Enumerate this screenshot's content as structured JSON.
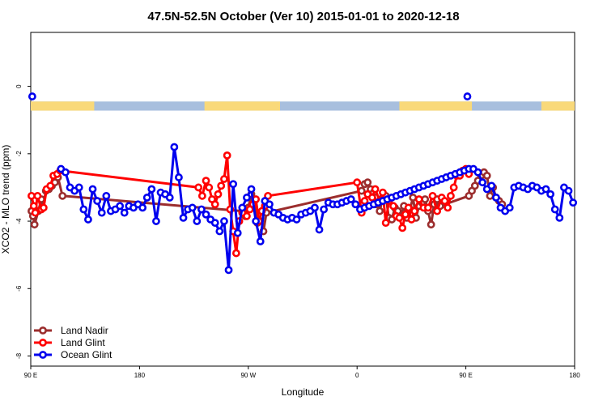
{
  "chart_data": {
    "type": "line",
    "title": "47.5N-52.5N October (Ver 10)   2015-01-01 to 2020-12-18",
    "xlabel": "Longitude",
    "ylabel": "XCO2 - MLO trend (ppm)",
    "xlim": [
      90,
      450
    ],
    "ylim": [
      -8.3,
      1.6
    ],
    "grid": false,
    "legend_position": "bottom-left",
    "x_ticks": [
      {
        "value": 90,
        "label": "90 E"
      },
      {
        "value": 162,
        "label": "180"
      },
      {
        "value": 234,
        "label": "90 W"
      },
      {
        "value": 306,
        "label": "0"
      },
      {
        "value": 378,
        "label": "90 E"
      },
      {
        "value": 450,
        "label": "180"
      }
    ],
    "y_ticks": [
      {
        "value": 0,
        "label": "0"
      },
      {
        "value": -2,
        "label": "-2"
      },
      {
        "value": -4,
        "label": "-4"
      },
      {
        "value": -6,
        "label": "-6"
      },
      {
        "value": -8,
        "label": "-8"
      }
    ],
    "land_ocean_strip": {
      "y_top": -0.45,
      "y_bottom": -0.72,
      "land_color": "#f9d97a",
      "ocean_color": "#a8bfde",
      "land_segments": [
        [
          90,
          132
        ],
        [
          205,
          255
        ],
        [
          334,
          382
        ],
        [
          428,
          450
        ]
      ]
    },
    "series": [
      {
        "name": "Land Nadir",
        "color": "#9b2d2d",
        "x": [
          90.5,
          91.5,
          92.5,
          95,
          97,
          98,
          100,
          102,
          104,
          106,
          108,
          111,
          230,
          232,
          234,
          236,
          238,
          240,
          242,
          244,
          246,
          309,
          311,
          313,
          315,
          317,
          319,
          321,
          323,
          325,
          327,
          329,
          331,
          333,
          335,
          337,
          339,
          341,
          343,
          345,
          347,
          349,
          351,
          353,
          355,
          357,
          359,
          361,
          380,
          382,
          384,
          386,
          388,
          390,
          392,
          394,
          396,
          398,
          400,
          402
        ],
        "y": [
          -3.7,
          -3.85,
          -4.1,
          -3.7,
          -3.35,
          -3.6,
          -3.1,
          -3.05,
          -2.95,
          -2.85,
          -2.7,
          -3.25,
          -3.7,
          -3.85,
          -3.6,
          -3.2,
          -3.4,
          -4.05,
          -3.85,
          -4.3,
          -3.75,
          -3.1,
          -2.9,
          -2.85,
          -3.05,
          -3.15,
          -3.5,
          -3.7,
          -3.3,
          -3.25,
          -3.9,
          -3.95,
          -3.6,
          -3.7,
          -3.85,
          -3.55,
          -3.9,
          -3.65,
          -3.3,
          -3.9,
          -3.55,
          -3.45,
          -3.35,
          -3.7,
          -4.1,
          -3.5,
          -3.35,
          -3.55,
          -3.25,
          -3.1,
          -2.95,
          -2.8,
          -2.65,
          -2.55,
          -2.65,
          -3.25,
          -3.0,
          -3.3,
          -3.4,
          -3.5
        ]
      },
      {
        "name": "Land Glint",
        "color": "#ff0000",
        "x": [
          90.5,
          92,
          93,
          94.5,
          97,
          98.5,
          100.5,
          103,
          105,
          107.5,
          109.5,
          201,
          203.5,
          206,
          208,
          210,
          212,
          214,
          216,
          218,
          220,
          222,
          224,
          226,
          228,
          230,
          233,
          235,
          237,
          239,
          241,
          243,
          245,
          247,
          306,
          309,
          311,
          313,
          316,
          318,
          321,
          323,
          325,
          327,
          330,
          332,
          334,
          336,
          338,
          340,
          342,
          344,
          347,
          350,
          353,
          356,
          359,
          362,
          364,
          366,
          368,
          370,
          372,
          374,
          376,
          378,
          380
        ],
        "y": [
          -3.25,
          -3.55,
          -3.75,
          -3.25,
          -3.65,
          -3.6,
          -3.05,
          -2.95,
          -2.65,
          -2.6,
          -2.5,
          -3.0,
          -3.25,
          -2.8,
          -3.0,
          -3.35,
          -3.5,
          -3.2,
          -2.95,
          -2.75,
          -2.05,
          -3.65,
          -4.3,
          -4.95,
          -4.0,
          -3.75,
          -3.85,
          -3.65,
          -3.5,
          -3.35,
          -4.0,
          -3.7,
          -3.55,
          -3.25,
          -2.85,
          -3.75,
          -3.4,
          -3.2,
          -3.3,
          -3.05,
          -3.4,
          -3.15,
          -4.05,
          -3.4,
          -3.55,
          -3.85,
          -3.9,
          -4.2,
          -3.8,
          -3.6,
          -3.95,
          -3.7,
          -3.35,
          -3.6,
          -3.6,
          -3.25,
          -3.7,
          -3.3,
          -3.4,
          -3.6,
          -3.25,
          -3.0,
          -2.65,
          -2.65,
          -2.5,
          -2.45,
          -2.6
        ]
      },
      {
        "name": "Ocean Glint",
        "color": "#0000ee",
        "x": [
          110,
          113,
          116,
          119,
          122,
          125,
          128,
          131,
          134,
          137,
          140,
          143,
          146,
          149,
          152,
          155,
          158,
          161,
          164,
          167,
          170,
          173,
          176,
          179,
          182,
          185,
          188,
          191,
          194,
          197,
          200,
          203,
          206,
          209,
          212,
          215,
          218,
          221,
          224,
          227,
          230,
          233,
          236,
          239,
          242,
          245,
          248,
          251,
          254,
          257,
          260,
          263,
          266,
          269,
          272,
          275,
          278,
          281,
          284,
          287,
          290,
          293,
          296,
          299,
          302,
          305,
          308,
          311,
          314,
          317,
          320,
          323,
          326,
          329,
          332,
          335,
          338,
          341,
          344,
          347,
          350,
          353,
          356,
          359,
          362,
          365,
          368,
          371,
          374,
          377,
          380,
          383,
          386,
          389,
          392,
          395,
          398,
          401,
          404,
          407,
          410,
          413,
          416,
          419,
          422,
          425,
          428,
          431,
          434,
          437,
          440,
          443,
          446,
          449
        ],
        "y": [
          -2.45,
          -2.55,
          -3.0,
          -3.1,
          -3.0,
          -3.65,
          -3.95,
          -3.05,
          -3.4,
          -3.75,
          -3.25,
          -3.7,
          -3.65,
          -3.55,
          -3.75,
          -3.55,
          -3.6,
          -3.5,
          -3.6,
          -3.3,
          -3.05,
          -4.0,
          -3.15,
          -3.2,
          -3.3,
          -1.8,
          -2.7,
          -3.9,
          -3.65,
          -3.6,
          -4.0,
          -3.65,
          -3.8,
          -3.95,
          -4.05,
          -4.3,
          -4.0,
          -5.45,
          -2.9,
          -4.35,
          -3.6,
          -3.3,
          -3.05,
          -4.0,
          -4.6,
          -3.4,
          -3.5,
          -3.75,
          -3.8,
          -3.9,
          -3.95,
          -3.9,
          -3.95,
          -3.8,
          -3.75,
          -3.7,
          -3.6,
          -4.25,
          -3.65,
          -3.45,
          -3.5,
          -3.5,
          -3.45,
          -3.4,
          -3.35,
          -3.5,
          -3.65,
          -3.6,
          -3.55,
          -3.5,
          -3.45,
          -3.4,
          -3.35,
          -3.3,
          -3.25,
          -3.2,
          -3.15,
          -3.1,
          -3.05,
          -3.0,
          -2.95,
          -2.9,
          -2.85,
          -2.8,
          -2.75,
          -2.7,
          -2.65,
          -2.6,
          -2.55,
          -2.5,
          -2.45,
          -2.45,
          -2.55,
          -2.85,
          -3.05,
          -2.95,
          -3.3,
          -3.6,
          -3.7,
          -3.6,
          -3.0,
          -2.95,
          -3.0,
          -3.05,
          -2.95,
          -3.0,
          -3.1,
          -3.05,
          -3.2,
          -3.65,
          -3.9,
          -3.0,
          -3.1,
          -3.45
        ]
      }
    ],
    "ocean_points_top": {
      "x": [
        91,
        379
      ],
      "y": [
        -0.3,
        -0.3
      ]
    }
  }
}
